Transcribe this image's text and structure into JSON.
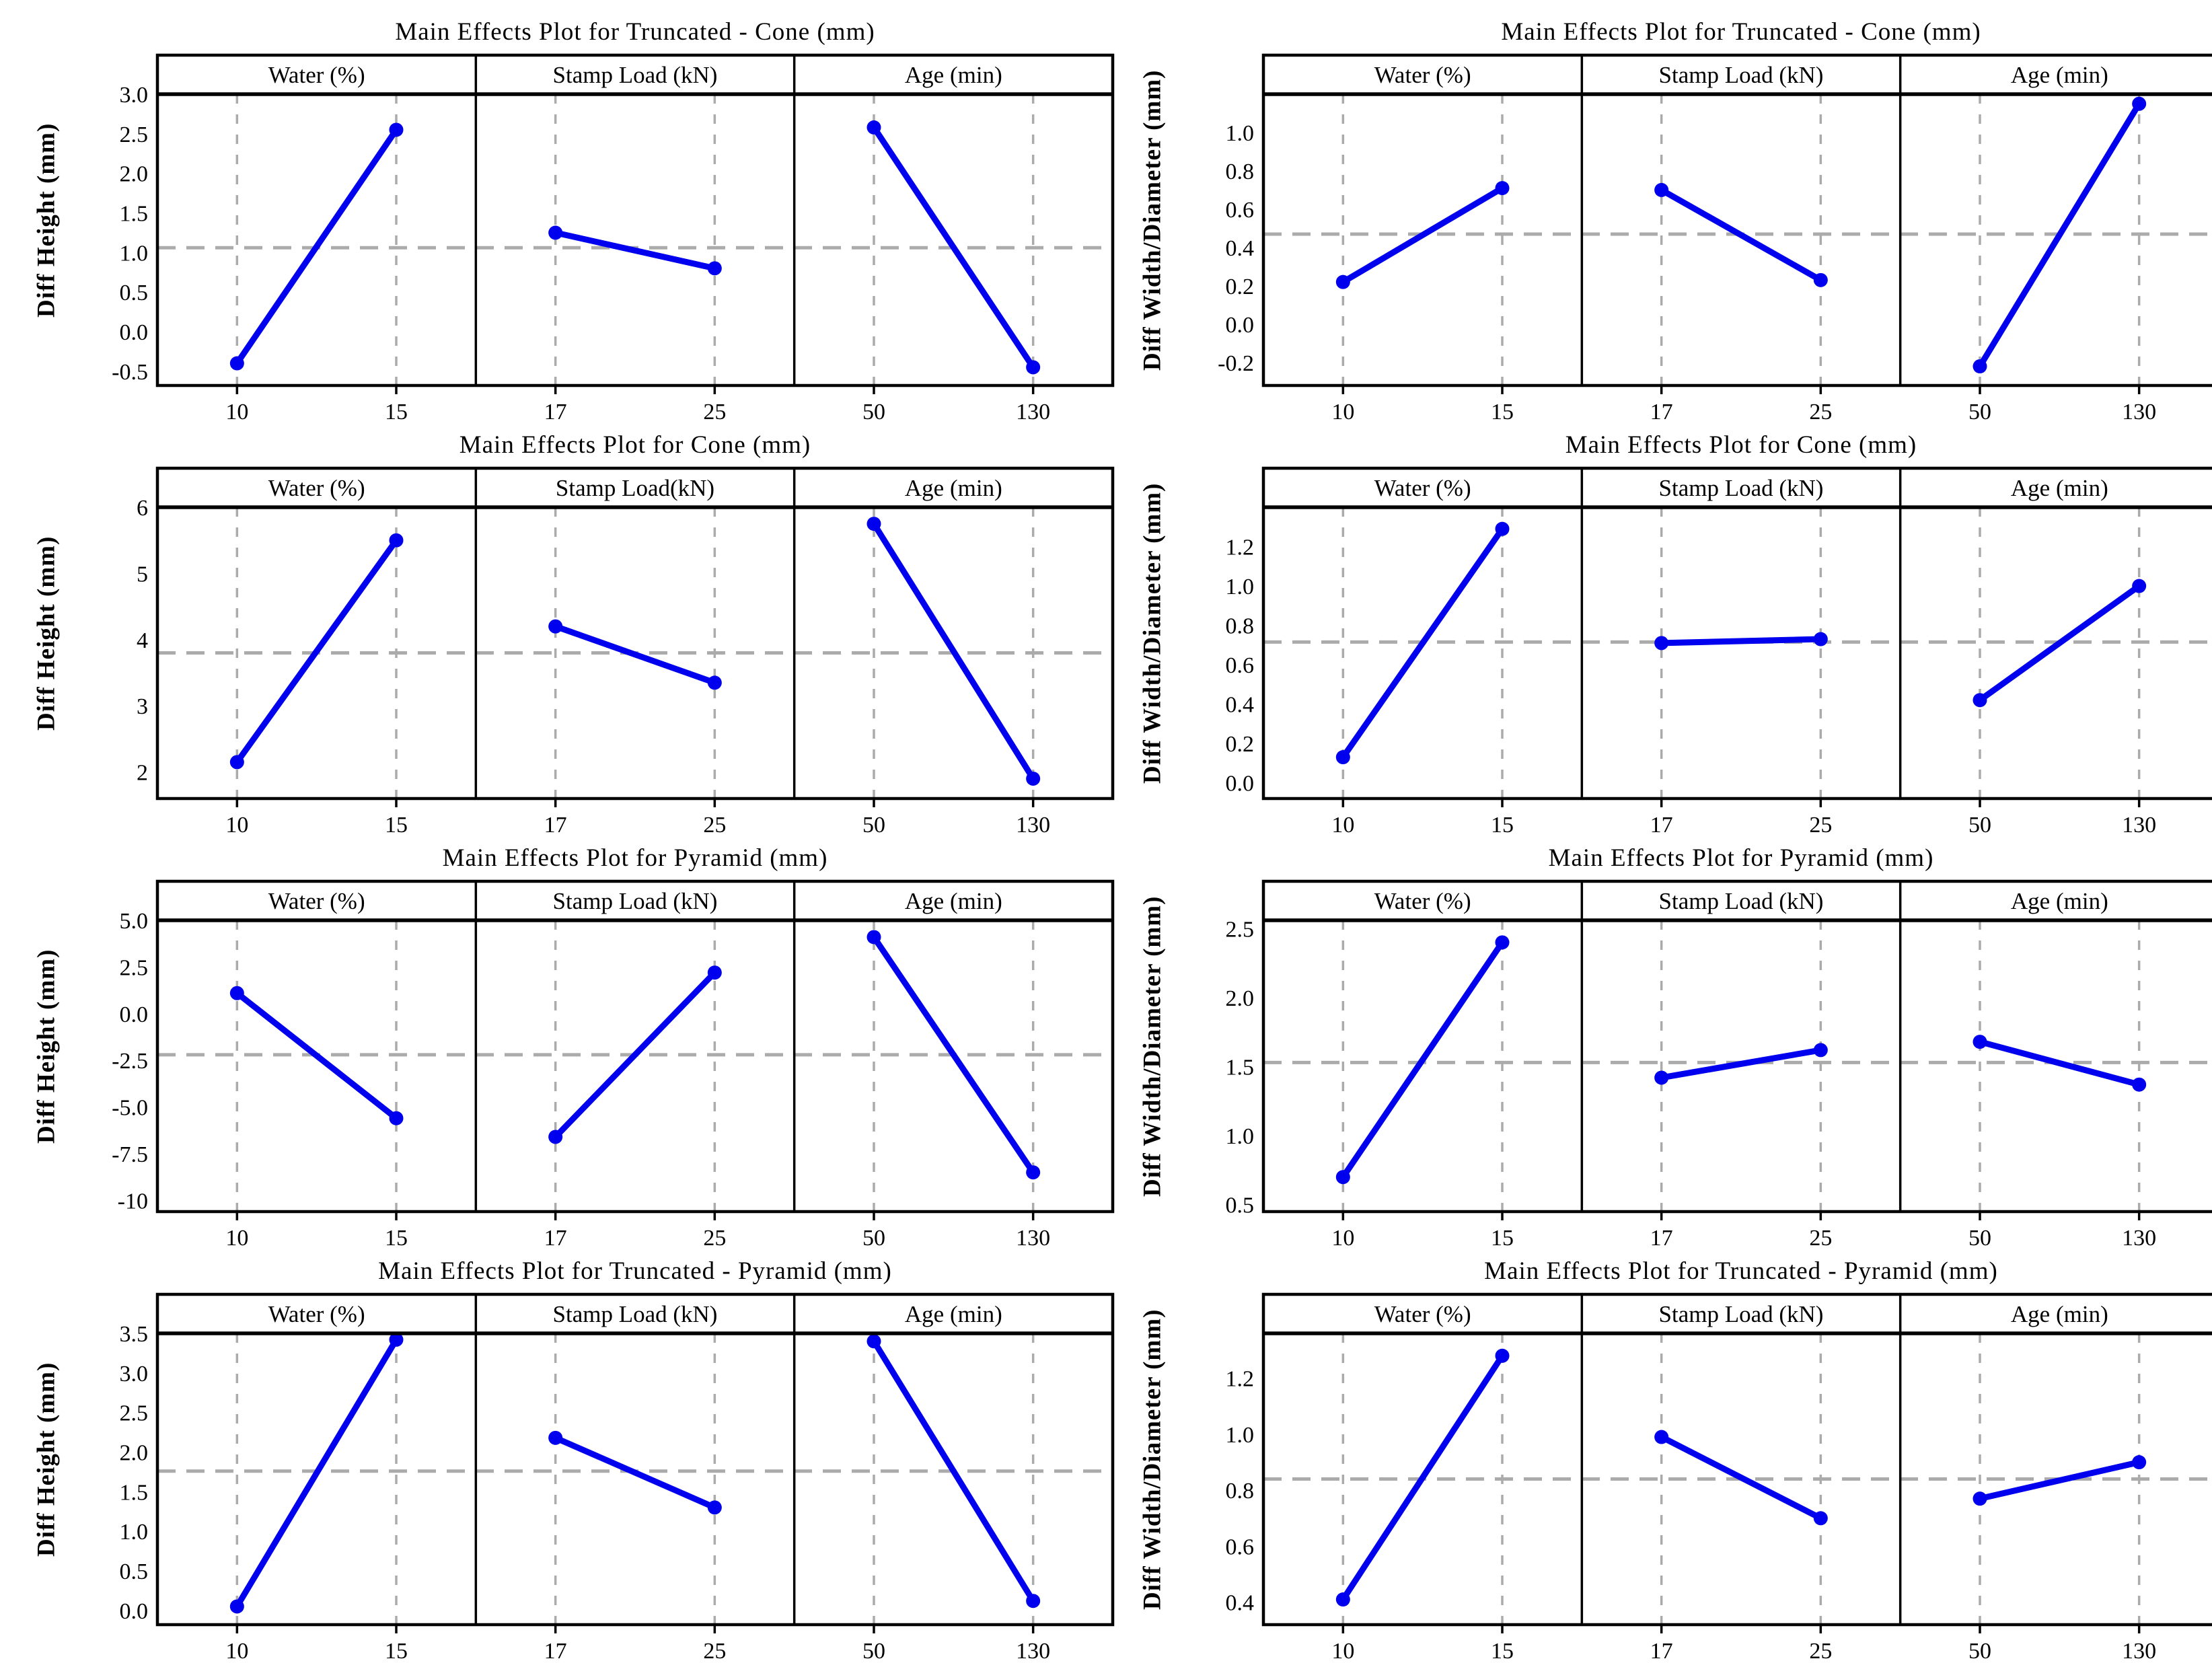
{
  "page": {
    "background": "#ffffff"
  },
  "colors": {
    "line": "#0000EE",
    "marker": "#0000EE",
    "grid": "#ABABAB",
    "mean_line": "#ABABAB",
    "axis": "#000000",
    "text": "#000000"
  },
  "chart_data": [
    {
      "type": "line",
      "title": "Main Effects Plot for Truncated - Cone (mm)",
      "ylabel": "Diff Height (mm)",
      "ylim": [
        -0.68,
        3.0
      ],
      "yticks": [
        "3.0",
        "2.5",
        "2.0",
        "1.5",
        "1.0",
        "0.5",
        "0.0",
        "-0.5"
      ],
      "mean": 1.06,
      "legend_position": "none",
      "grid": "dashed vertical at factor levels",
      "panels": [
        {
          "header": "Water (%)",
          "levels": [
            "10",
            "15"
          ],
          "values": [
            -0.4,
            2.55
          ]
        },
        {
          "header": "Stamp Load (kN)",
          "levels": [
            "17",
            "25"
          ],
          "values": [
            1.25,
            0.8
          ]
        },
        {
          "header": "Age (min)",
          "levels": [
            "50",
            "130"
          ],
          "values": [
            2.58,
            -0.45
          ]
        }
      ]
    },
    {
      "type": "line",
      "title": "Main Effects Plot for Truncated - Cone (mm)",
      "ylabel": "Diff Width/Diameter (mm)",
      "ylim": [
        -0.32,
        1.2
      ],
      "yticks": [
        "1.0",
        "0.8",
        "0.6",
        "0.4",
        "0.2",
        "0.0",
        "-0.2"
      ],
      "mean": 0.47,
      "legend_position": "none",
      "grid": "dashed vertical at factor levels",
      "panels": [
        {
          "header": "Water (%)",
          "levels": [
            "10",
            "15"
          ],
          "values": [
            0.22,
            0.71
          ]
        },
        {
          "header": "Stamp Load (kN)",
          "levels": [
            "17",
            "25"
          ],
          "values": [
            0.7,
            0.23
          ]
        },
        {
          "header": "Age (min)",
          "levels": [
            "50",
            "130"
          ],
          "values": [
            -0.22,
            1.15
          ]
        }
      ]
    },
    {
      "type": "line",
      "title": "Main Effects Plot for Cone (mm)",
      "ylabel": "Diff Height (mm)",
      "ylim": [
        1.6,
        6.0
      ],
      "yticks": [
        "6",
        "5",
        "4",
        "3",
        "2"
      ],
      "mean": 3.8,
      "legend_position": "none",
      "grid": "dashed vertical at factor levels",
      "panels": [
        {
          "header": "Water (%)",
          "levels": [
            "10",
            "15"
          ],
          "values": [
            2.15,
            5.5
          ]
        },
        {
          "header": "Stamp Load(kN)",
          "levels": [
            "17",
            "25"
          ],
          "values": [
            4.2,
            3.35
          ]
        },
        {
          "header": "Age (min)",
          "levels": [
            "50",
            "130"
          ],
          "values": [
            5.75,
            1.9
          ]
        }
      ]
    },
    {
      "type": "line",
      "title": "Main Effects Plot for Cone (mm)",
      "ylabel": "Diff Width/Diameter (mm)",
      "ylim": [
        -0.08,
        1.4
      ],
      "yticks": [
        "1.2",
        "1.0",
        "0.8",
        "0.6",
        "0.4",
        "0.2",
        "0.0"
      ],
      "mean": 0.715,
      "legend_position": "none",
      "grid": "dashed vertical at factor levels",
      "panels": [
        {
          "header": "Water (%)",
          "levels": [
            "10",
            "15"
          ],
          "values": [
            0.13,
            1.29
          ]
        },
        {
          "header": "Stamp Load (kN)",
          "levels": [
            "17",
            "25"
          ],
          "values": [
            0.71,
            0.73
          ]
        },
        {
          "header": "Age (min)",
          "levels": [
            "50",
            "130"
          ],
          "values": [
            0.42,
            1.0
          ]
        }
      ]
    },
    {
      "type": "line",
      "title": "Main Effects Plot for Pyramid (mm)",
      "ylabel": "Diff Height (mm)",
      "ylim": [
        -10.6,
        5.0
      ],
      "yticks": [
        "5.0",
        "2.5",
        "0.0",
        "-2.5",
        "-5.0",
        "-7.5",
        "-10"
      ],
      "mean": -2.2,
      "legend_position": "none",
      "grid": "dashed vertical at factor levels",
      "panels": [
        {
          "header": "Water (%)",
          "levels": [
            "10",
            "15"
          ],
          "values": [
            1.1,
            -5.6
          ]
        },
        {
          "header": "Stamp Load (kN)",
          "levels": [
            "17",
            "25"
          ],
          "values": [
            -6.6,
            2.2
          ]
        },
        {
          "header": "Age (min)",
          "levels": [
            "50",
            "130"
          ],
          "values": [
            4.1,
            -8.5
          ]
        }
      ]
    },
    {
      "type": "line",
      "title": "Main Effects Plot for Pyramid (mm)",
      "ylabel": "Diff Width/Diameter (mm)",
      "ylim": [
        0.45,
        2.56
      ],
      "yticks": [
        "2.5",
        "2.0",
        "1.5",
        "1.0",
        "0.5"
      ],
      "mean": 1.53,
      "legend_position": "none",
      "grid": "dashed vertical at factor levels",
      "panels": [
        {
          "header": "Water (%)",
          "levels": [
            "10",
            "15"
          ],
          "values": [
            0.7,
            2.4
          ]
        },
        {
          "header": "Stamp Load (kN)",
          "levels": [
            "17",
            "25"
          ],
          "values": [
            1.42,
            1.62
          ]
        },
        {
          "header": "Age (min)",
          "levels": [
            "50",
            "130"
          ],
          "values": [
            1.68,
            1.37
          ]
        }
      ]
    },
    {
      "type": "line",
      "title": "Main Effects Plot for Truncated - Pyramid (mm)",
      "ylabel": "Diff Height (mm)",
      "ylim": [
        -0.18,
        3.5
      ],
      "yticks": [
        "3.5",
        "3.0",
        "2.5",
        "2.0",
        "1.5",
        "1.0",
        "0.5",
        "0.0"
      ],
      "mean": 1.76,
      "legend_position": "none",
      "grid": "dashed vertical at factor levels",
      "panels": [
        {
          "header": "Water (%)",
          "levels": [
            "10",
            "15"
          ],
          "values": [
            0.05,
            3.42
          ]
        },
        {
          "header": "Stamp Load (kN)",
          "levels": [
            "17",
            "25"
          ],
          "values": [
            2.18,
            1.3
          ]
        },
        {
          "header": "Age (min)",
          "levels": [
            "50",
            "130"
          ],
          "values": [
            3.4,
            0.12
          ]
        }
      ]
    },
    {
      "type": "line",
      "title": "Main Effects Plot for Truncated - Pyramid (mm)",
      "ylabel": "Diff Width/Diameter (mm)",
      "ylim": [
        0.32,
        1.36
      ],
      "yticks": [
        "1.2",
        "1.0",
        "0.8",
        "0.6",
        "0.4"
      ],
      "mean": 0.84,
      "legend_position": "none",
      "grid": "dashed vertical at factor levels",
      "panels": [
        {
          "header": "Water (%)",
          "levels": [
            "10",
            "15"
          ],
          "values": [
            0.41,
            1.28
          ]
        },
        {
          "header": "Stamp Load (kN)",
          "levels": [
            "17",
            "25"
          ],
          "values": [
            0.99,
            0.7
          ]
        },
        {
          "header": "Age (min)",
          "levels": [
            "50",
            "130"
          ],
          "values": [
            0.77,
            0.9
          ]
        }
      ]
    }
  ]
}
